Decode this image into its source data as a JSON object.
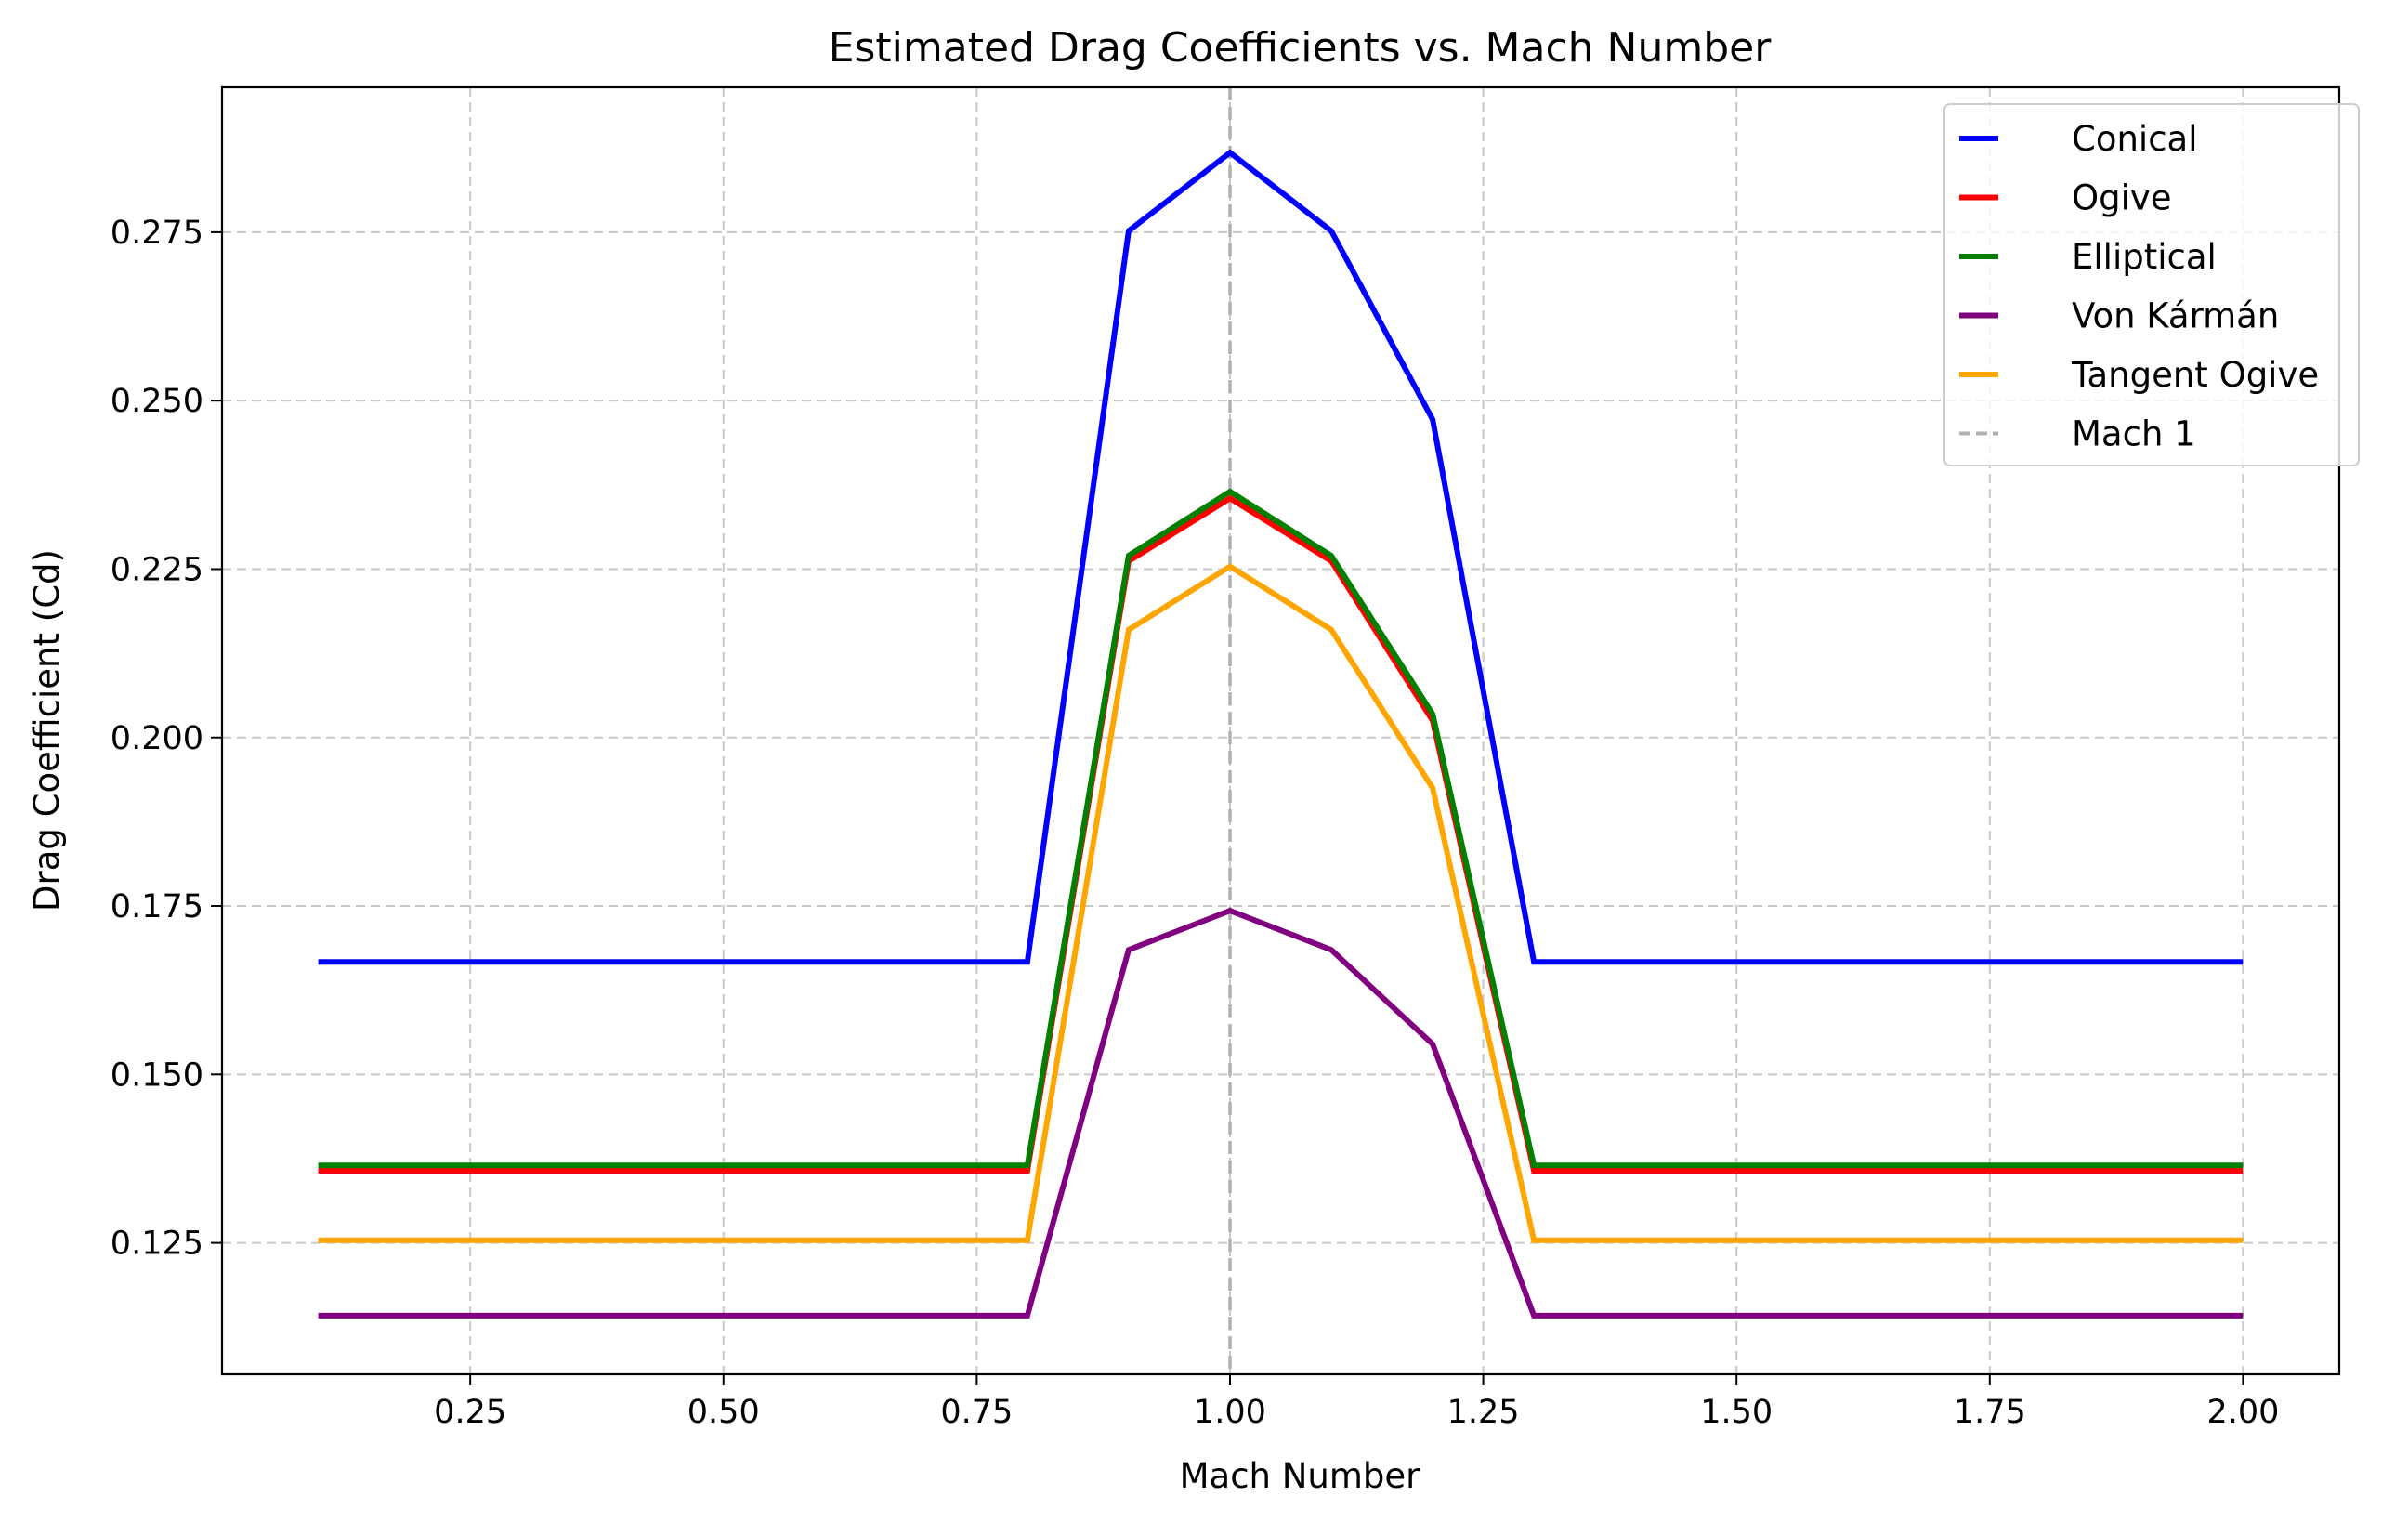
{
  "chart_data": {
    "type": "line",
    "title": "Estimated Drag Coefficients vs. Mach Number",
    "xlabel": "Mach Number",
    "ylabel": "Drag Coefficient (Cd)",
    "xlim": [
      0.005,
      2.095
    ],
    "ylim": [
      0.1055,
      0.2965
    ],
    "x_ticks": [
      0.25,
      0.5,
      0.75,
      1.0,
      1.25,
      1.5,
      1.75,
      2.0
    ],
    "x_tick_labels": [
      "0.25",
      "0.50",
      "0.75",
      "1.00",
      "1.25",
      "1.50",
      "1.75",
      "2.00"
    ],
    "y_ticks": [
      0.125,
      0.15,
      0.175,
      0.2,
      0.225,
      0.25,
      0.275
    ],
    "y_tick_labels": [
      "0.125",
      "0.150",
      "0.175",
      "0.200",
      "0.225",
      "0.250",
      "0.275"
    ],
    "grid": true,
    "legend_position": "top-right",
    "x": [
      0.1,
      0.8,
      0.9,
      1.0,
      1.1,
      1.2,
      1.3,
      2.0
    ],
    "series": [
      {
        "name": "Conical",
        "color": "#0000ff",
        "values": [
          0.1667,
          0.1667,
          0.2752,
          0.2868,
          0.2752,
          0.2472,
          0.1667,
          0.1667
        ]
      },
      {
        "name": "Ogive",
        "color": "#ff0000",
        "values": [
          0.1357,
          0.1357,
          0.2262,
          0.2355,
          0.2262,
          0.2025,
          0.1357,
          0.1357
        ]
      },
      {
        "name": "Elliptical",
        "color": "#008000",
        "values": [
          0.1365,
          0.1365,
          0.227,
          0.2365,
          0.227,
          0.2035,
          0.1365,
          0.1365
        ]
      },
      {
        "name": "Von Kármán",
        "color": "#800080",
        "values": [
          0.1142,
          0.1142,
          0.1685,
          0.1743,
          0.1685,
          0.1545,
          0.1142,
          0.1142
        ]
      },
      {
        "name": "Tangent Ogive",
        "color": "#ffa500",
        "values": [
          0.1254,
          0.1254,
          0.216,
          0.2254,
          0.216,
          0.1925,
          0.1254,
          0.1254
        ]
      }
    ],
    "reference_line": {
      "name": "Mach 1",
      "x": 1.0,
      "color": "#b0b0b0",
      "style": "dashed"
    }
  }
}
